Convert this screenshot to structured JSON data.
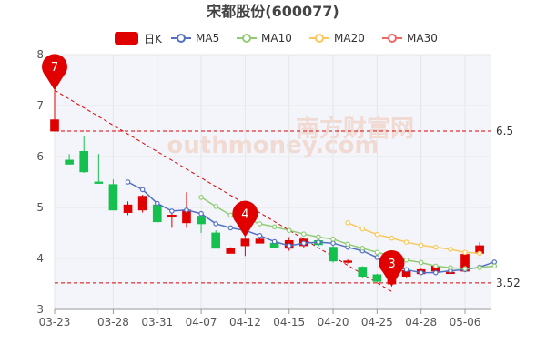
{
  "chart_data": {
    "type": "candlestick",
    "title": "宋都股份(600077)",
    "legend": [
      {
        "name": "日K",
        "icon": "rounded-rect",
        "color": "#e00000"
      },
      {
        "name": "MA5",
        "color": "#5470c6"
      },
      {
        "name": "MA10",
        "color": "#91cc75"
      },
      {
        "name": "MA20",
        "color": "#fac858"
      },
      {
        "name": "MA30",
        "color": "#ee6666"
      }
    ],
    "colors": {
      "up": "#e00000",
      "down": "#14c14f",
      "grid": "#e6e6e6",
      "bg": "#f3f5fa",
      "ref_line": "#e00000",
      "trend": "#e00000"
    },
    "watermark": {
      "cn": "南方财富网",
      "en": "outhmoney.com"
    },
    "ylim": [
      3,
      8
    ],
    "yticks": [
      3,
      4,
      5,
      6,
      7,
      8
    ],
    "x_tick_labels": [
      {
        "i": 0,
        "label": "03-23"
      },
      {
        "i": 4,
        "label": "03-28"
      },
      {
        "i": 7,
        "label": "03-31"
      },
      {
        "i": 10,
        "label": "04-07"
      },
      {
        "i": 13,
        "label": "04-12"
      },
      {
        "i": 16,
        "label": "04-15"
      },
      {
        "i": 19,
        "label": "04-20"
      },
      {
        "i": 22,
        "label": "04-25"
      },
      {
        "i": 25,
        "label": "04-28"
      },
      {
        "i": 28,
        "label": "05-06"
      }
    ],
    "candles": [
      {
        "o": 6.5,
        "c": 6.72,
        "h": 7.3,
        "l": 6.5
      },
      {
        "o": 5.93,
        "c": 5.85,
        "h": 6.05,
        "l": 5.85
      },
      {
        "o": 6.1,
        "c": 5.7,
        "h": 6.4,
        "l": 5.68
      },
      {
        "o": 5.5,
        "c": 5.48,
        "h": 6.05,
        "l": 5.48
      },
      {
        "o": 5.45,
        "c": 4.95,
        "h": 5.55,
        "l": 4.95
      },
      {
        "o": 4.9,
        "c": 5.05,
        "h": 5.12,
        "l": 4.85
      },
      {
        "o": 4.95,
        "c": 5.22,
        "h": 5.25,
        "l": 4.9
      },
      {
        "o": 5.05,
        "c": 4.72,
        "h": 5.08,
        "l": 4.7
      },
      {
        "o": 4.83,
        "c": 4.85,
        "h": 4.95,
        "l": 4.6
      },
      {
        "o": 4.7,
        "c": 4.95,
        "h": 5.3,
        "l": 4.6
      },
      {
        "o": 4.83,
        "c": 4.68,
        "h": 4.92,
        "l": 4.5
      },
      {
        "o": 4.5,
        "c": 4.2,
        "h": 4.55,
        "l": 4.2
      },
      {
        "o": 4.1,
        "c": 4.2,
        "h": 4.22,
        "l": 4.1
      },
      {
        "o": 4.25,
        "c": 4.38,
        "h": 4.42,
        "l": 4.05
      },
      {
        "o": 4.3,
        "c": 4.38,
        "h": 4.42,
        "l": 4.3
      },
      {
        "o": 4.3,
        "c": 4.22,
        "h": 4.35,
        "l": 4.2
      },
      {
        "o": 4.2,
        "c": 4.35,
        "h": 4.42,
        "l": 4.15
      },
      {
        "o": 4.25,
        "c": 4.38,
        "h": 4.4,
        "l": 4.2
      },
      {
        "o": 4.35,
        "c": 4.27,
        "h": 4.38,
        "l": 4.23
      },
      {
        "o": 4.22,
        "c": 3.95,
        "h": 4.28,
        "l": 3.92
      },
      {
        "o": 3.95,
        "c": 3.95,
        "h": 3.98,
        "l": 3.9
      },
      {
        "o": 3.83,
        "c": 3.65,
        "h": 3.85,
        "l": 3.62
      },
      {
        "o": 3.68,
        "c": 3.55,
        "h": 3.7,
        "l": 3.52
      },
      {
        "o": 3.5,
        "c": 3.62,
        "h": 3.65,
        "l": 3.45
      },
      {
        "o": 3.65,
        "c": 3.76,
        "h": 3.78,
        "l": 3.63
      },
      {
        "o": 3.7,
        "c": 3.78,
        "h": 3.8,
        "l": 3.68
      },
      {
        "o": 3.75,
        "c": 3.85,
        "h": 3.88,
        "l": 3.72
      },
      {
        "o": 3.72,
        "c": 3.73,
        "h": 3.75,
        "l": 3.7
      },
      {
        "o": 3.75,
        "c": 4.08,
        "h": 4.1,
        "l": 3.73
      },
      {
        "o": 4.1,
        "c": 4.25,
        "h": 4.32,
        "l": 4.05
      }
    ],
    "ma": [
      {
        "name": "MA5",
        "color": "#5470c6",
        "start": 5,
        "values": [
          5.5,
          5.35,
          5.08,
          4.93,
          4.95,
          4.88,
          4.68,
          4.6,
          4.55,
          4.45,
          4.33,
          4.25,
          4.3,
          4.32,
          4.3,
          4.22,
          4.15,
          4.02,
          3.87,
          3.78,
          3.72,
          3.72,
          3.76,
          3.78,
          3.83,
          3.93
        ]
      },
      {
        "name": "MA10",
        "color": "#91cc75",
        "start": 10,
        "values": [
          5.2,
          5.02,
          4.85,
          4.78,
          4.68,
          4.62,
          4.55,
          4.48,
          4.42,
          4.38,
          4.28,
          4.2,
          4.12,
          4.05,
          3.97,
          3.92,
          3.85,
          3.82,
          3.8,
          3.82,
          3.85
        ]
      },
      {
        "name": "MA20",
        "color": "#fac858",
        "start": 20,
        "values": [
          4.7,
          4.58,
          4.47,
          4.4,
          4.32,
          4.26,
          4.22,
          4.18,
          4.12,
          4.1
        ]
      }
    ],
    "ref_lines": [
      {
        "value": 6.5,
        "label": "6.5"
      },
      {
        "value": 3.52,
        "label": "3.52"
      }
    ],
    "markers": [
      {
        "i": 0,
        "value": 7.3,
        "label": "7"
      },
      {
        "i": 13,
        "value": 4.42,
        "label": "4"
      },
      {
        "i": 23,
        "value": 3.45,
        "label": "3"
      }
    ],
    "trend_line": {
      "from": {
        "i": 0,
        "value": 7.3
      },
      "to": {
        "i": 23,
        "value": 3.35
      }
    }
  }
}
